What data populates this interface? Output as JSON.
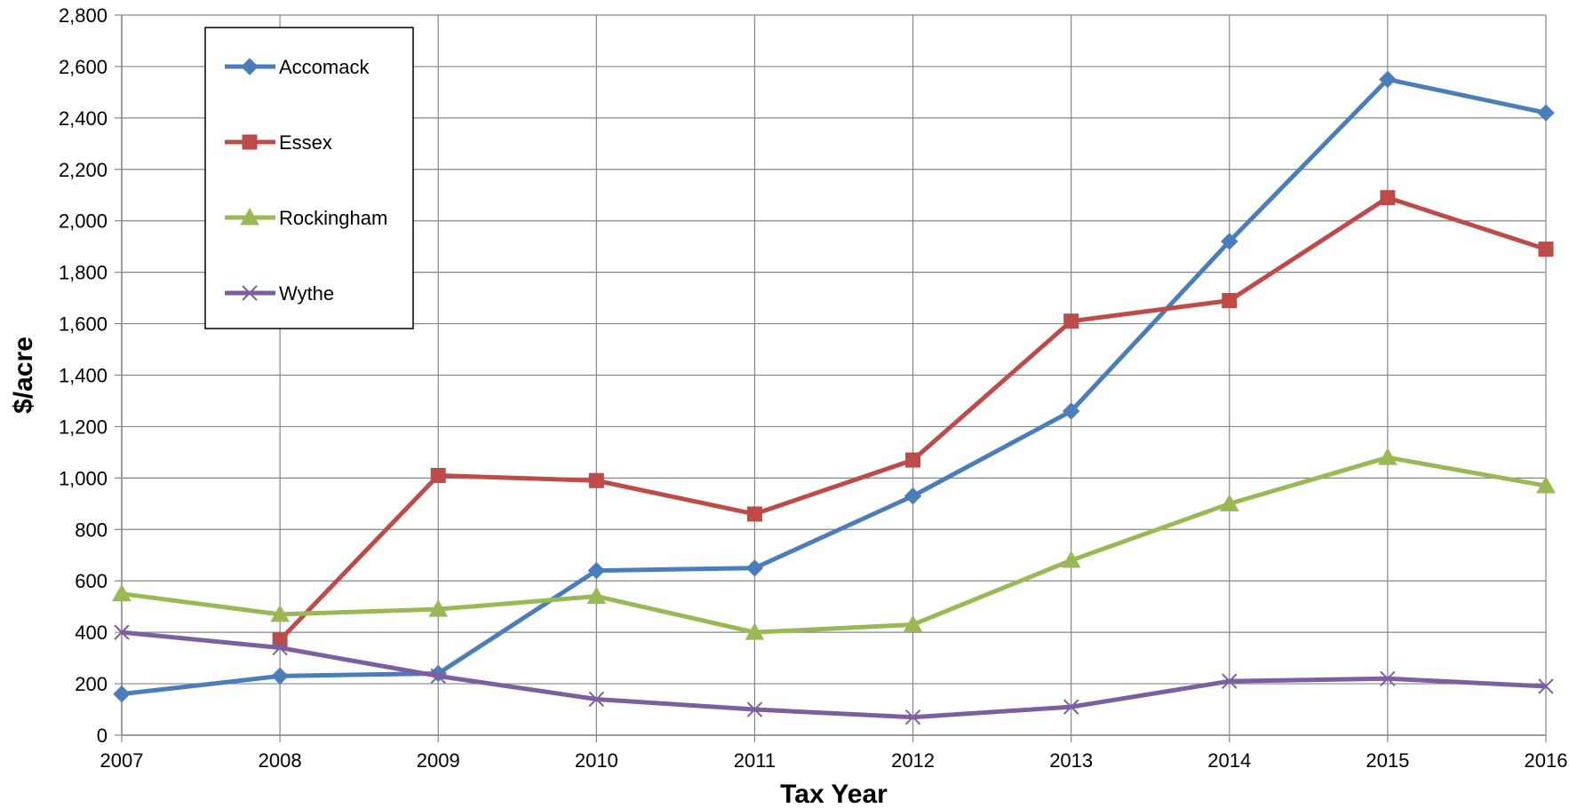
{
  "chart_data": {
    "type": "line",
    "title": "",
    "xlabel": "Tax Year",
    "ylabel": "$/acre",
    "categories": [
      "2007",
      "2008",
      "2009",
      "2010",
      "2011",
      "2012",
      "2013",
      "2014",
      "2015",
      "2016"
    ],
    "ylim": [
      0,
      2800
    ],
    "yticks": [
      "0",
      "200",
      "400",
      "600",
      "800",
      "1,000",
      "1,200",
      "1,400",
      "1,600",
      "1,800",
      "2,000",
      "2,200",
      "2,400",
      "2,600",
      "2,800"
    ],
    "grid": true,
    "legend_position": "top-left",
    "series": [
      {
        "name": "Accomack",
        "color": "#4A7EBB",
        "marker": "diamond",
        "values": [
          160,
          230,
          240,
          640,
          650,
          930,
          1260,
          1920,
          2550,
          2420
        ]
      },
      {
        "name": "Essex",
        "color": "#BE4B48",
        "marker": "square",
        "values": [
          null,
          370,
          1010,
          990,
          860,
          1070,
          1610,
          1690,
          2090,
          1890
        ]
      },
      {
        "name": "Rockingham",
        "color": "#98B954",
        "marker": "triangle",
        "values": [
          550,
          470,
          490,
          540,
          400,
          430,
          680,
          900,
          1080,
          970
        ]
      },
      {
        "name": "Wythe",
        "color": "#7D5FA0",
        "marker": "x",
        "values": [
          400,
          340,
          230,
          140,
          100,
          70,
          110,
          210,
          220,
          190
        ]
      }
    ]
  }
}
